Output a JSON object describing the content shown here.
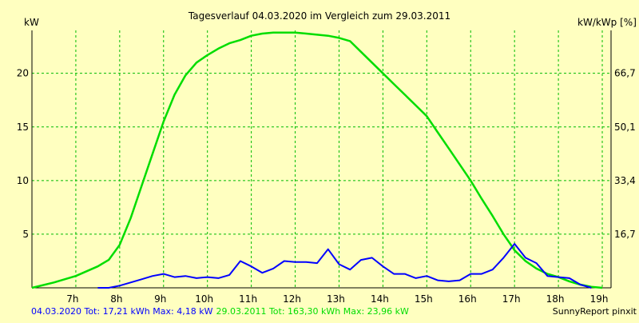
{
  "chart_data": {
    "type": "line",
    "title": "Tagesverlauf 04.03.2020 im Vergleich zum 29.03.2011",
    "ylabel_left": "kW",
    "ylabel_right": "kW/kWp [%]",
    "xlim": [
      6.0,
      19.2
    ],
    "ylim": [
      0,
      24
    ],
    "grid": true,
    "legend": "bottom-left",
    "x_ticks": [
      {
        "x": 7,
        "label": "7h"
      },
      {
        "x": 8,
        "label": "8h"
      },
      {
        "x": 9,
        "label": "9h"
      },
      {
        "x": 10,
        "label": "10h"
      },
      {
        "x": 11,
        "label": "11h"
      },
      {
        "x": 12,
        "label": "12h"
      },
      {
        "x": 13,
        "label": "13h"
      },
      {
        "x": 14,
        "label": "14h"
      },
      {
        "x": 15,
        "label": "15h"
      },
      {
        "x": 16,
        "label": "16h"
      },
      {
        "x": 17,
        "label": "17h"
      },
      {
        "x": 18,
        "label": "18h"
      },
      {
        "x": 19,
        "label": "19h"
      }
    ],
    "y_ticks_left": [
      {
        "y": 5,
        "label": "5"
      },
      {
        "y": 10,
        "label": "10"
      },
      {
        "y": 15,
        "label": "15"
      },
      {
        "y": 20,
        "label": "20"
      }
    ],
    "y_ticks_right": [
      {
        "y": 5,
        "label": "16,7"
      },
      {
        "y": 10,
        "label": "33,4"
      },
      {
        "y": 15,
        "label": "50,1"
      },
      {
        "y": 20,
        "label": "66,7"
      }
    ],
    "series": [
      {
        "name": "04.03.2020",
        "color": "#0000ff",
        "x": [
          7.5,
          7.75,
          8.0,
          8.25,
          8.5,
          8.75,
          9.0,
          9.25,
          9.5,
          9.75,
          10.0,
          10.25,
          10.5,
          10.75,
          11.0,
          11.25,
          11.5,
          11.75,
          12.0,
          12.25,
          12.5,
          12.75,
          13.0,
          13.25,
          13.5,
          13.75,
          14.0,
          14.25,
          14.5,
          14.75,
          15.0,
          15.25,
          15.5,
          15.75,
          16.0,
          16.25,
          16.5,
          16.75,
          17.0,
          17.25,
          17.5,
          17.75,
          18.0,
          18.25,
          18.5,
          18.75
        ],
        "y": [
          0.0,
          0.0,
          0.2,
          0.5,
          0.8,
          1.1,
          1.3,
          1.0,
          1.1,
          0.9,
          1.0,
          0.9,
          1.2,
          2.5,
          2.0,
          1.4,
          1.8,
          2.5,
          2.4,
          2.4,
          2.3,
          3.6,
          2.2,
          1.7,
          2.6,
          2.8,
          2.0,
          1.3,
          1.3,
          0.9,
          1.1,
          0.7,
          0.6,
          0.7,
          1.3,
          1.3,
          1.7,
          2.8,
          4.1,
          2.8,
          2.3,
          1.1,
          1.0,
          0.9,
          0.3,
          0.0
        ]
      },
      {
        "name": "29.03.2011",
        "color": "#00dd00",
        "x": [
          6.0,
          6.5,
          7.0,
          7.5,
          7.75,
          8.0,
          8.25,
          8.5,
          8.75,
          9.0,
          9.25,
          9.5,
          9.75,
          10.0,
          10.25,
          10.5,
          10.75,
          11.0,
          11.25,
          11.5,
          11.75,
          12.0,
          12.25,
          12.5,
          12.75,
          13.0,
          13.25,
          13.5,
          13.75,
          14.0,
          14.25,
          14.5,
          14.75,
          15.0,
          15.25,
          15.5,
          15.75,
          16.0,
          16.25,
          16.5,
          16.75,
          17.0,
          17.25,
          17.5,
          17.75,
          18.0,
          18.25,
          18.5,
          18.75,
          19.0
        ],
        "y": [
          0.0,
          0.5,
          1.1,
          2.0,
          2.6,
          4.0,
          6.5,
          9.5,
          12.5,
          15.5,
          18.0,
          19.8,
          21.0,
          21.7,
          22.3,
          22.8,
          23.1,
          23.5,
          23.7,
          23.8,
          23.8,
          23.8,
          23.7,
          23.6,
          23.5,
          23.3,
          23.0,
          22.0,
          21.0,
          20.0,
          19.0,
          18.0,
          17.0,
          16.0,
          14.5,
          13.0,
          11.5,
          10.0,
          8.3,
          6.7,
          5.0,
          3.5,
          2.5,
          1.8,
          1.3,
          1.0,
          0.6,
          0.3,
          0.1,
          0.0
        ]
      }
    ]
  },
  "footer": {
    "legend_blue": "04.03.2020 Tot: 17,21 kWh Max: 4,18 kW",
    "legend_green": "29.03.2011 Tot: 163,30 kWh Max: 23,96 kW",
    "credit": "SunnyReport pinxit"
  }
}
